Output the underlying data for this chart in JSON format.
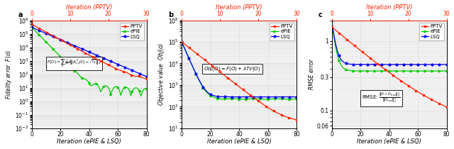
{
  "fig_width": 6.4,
  "fig_height": 2.1,
  "dpi": 100,
  "pptv_color": "#ff2200",
  "epie_color": "#00cc00",
  "lsq_color": "#0000ee",
  "top_axis_color": "#ff2200",
  "n_epie_lsq": 81,
  "n_pptv": 31,
  "panel_labels": [
    "a",
    "b",
    "c"
  ],
  "top_xlabel": "Iteration (PPTV)",
  "bot_xlabel": "Iteration (ePIE & LSQ)",
  "ylabel_a": "Fidelity error  $F(o)$",
  "ylabel_b": "Objective value  $Obj(o)$",
  "ylabel_c": "RMSE error",
  "legend_entries": [
    "PPTV",
    "ePIE",
    "LSQ"
  ],
  "pptv_xlim": [
    0,
    30
  ],
  "epie_xlim": [
    0,
    80
  ],
  "pptv_xticks": [
    0,
    10,
    20,
    30
  ],
  "epie_xticks": [
    0,
    20,
    40,
    60,
    80
  ],
  "grid_color": "#dddddd",
  "bg_color": "#f0f0f0"
}
